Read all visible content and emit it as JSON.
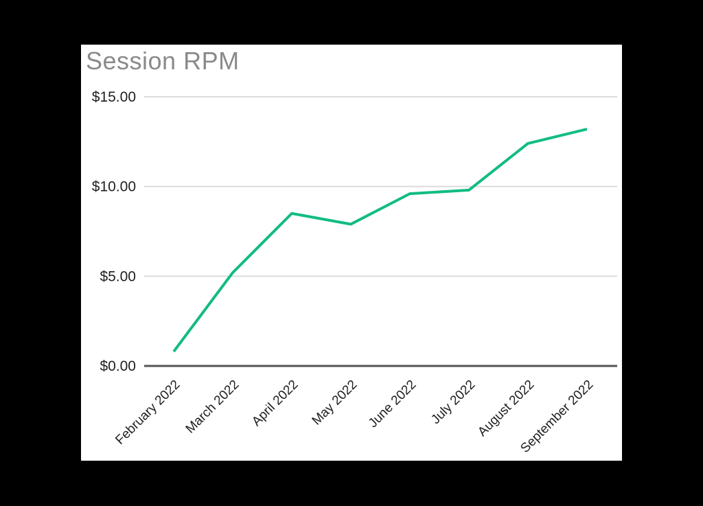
{
  "colors": {
    "page_background": "#000000",
    "card_background": "#ffffff",
    "title_text": "#8a8a8a",
    "axis_label_text": "#1f1f1f",
    "gridline": "#dcdcdc",
    "axis_line": "#545454",
    "series_green": "#12bc82"
  },
  "chart_data": {
    "type": "line",
    "title": "Session RPM",
    "categories": [
      "February 2022",
      "March 2022",
      "April 2022",
      "May 2022",
      "June 2022",
      "July 2022",
      "August 2022",
      "September 2022"
    ],
    "series": [
      {
        "name": "Session RPM",
        "color_key": "series_green",
        "values": [
          0.8,
          5.2,
          8.5,
          7.9,
          9.6,
          9.8,
          12.4,
          13.2
        ]
      }
    ],
    "y_ticks": [
      {
        "value": 15,
        "label": "$15.00"
      },
      {
        "value": 10,
        "label": "$10.00"
      },
      {
        "value": 5,
        "label": "$5.00"
      },
      {
        "value": 0,
        "label": "$0.00"
      }
    ],
    "ylim": [
      0,
      15
    ],
    "xlabel": "",
    "ylabel": "",
    "grid": true,
    "legend_position": "none",
    "x_label_rotation_deg": -45
  }
}
